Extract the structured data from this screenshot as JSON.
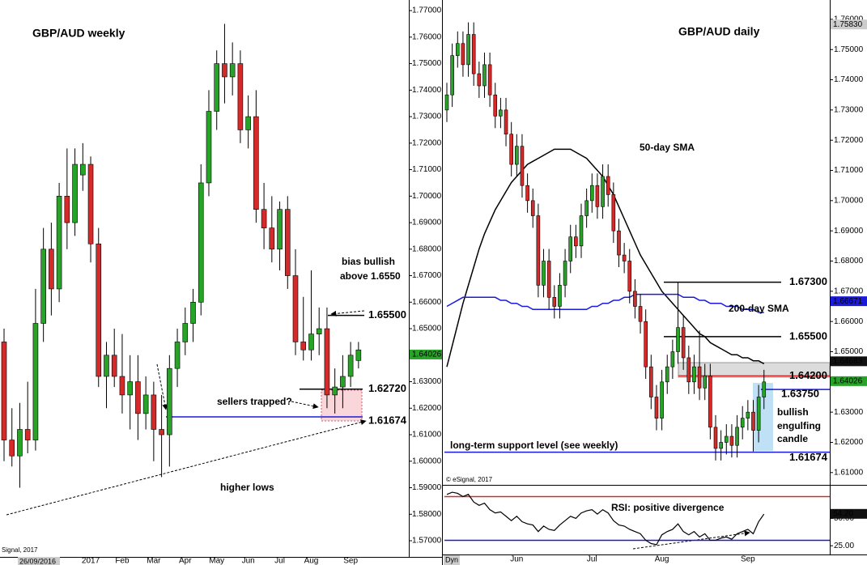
{
  "chart_data": [
    {
      "type": "candlestick",
      "title": "GBP/AUD weekly",
      "categories": [
        null,
        null,
        null,
        null,
        null,
        null,
        null,
        null,
        null,
        null,
        null,
        "2017",
        null,
        null,
        null,
        "Feb",
        null,
        null,
        null,
        "Mar",
        null,
        null,
        null,
        "Apr",
        null,
        null,
        null,
        "May",
        null,
        null,
        null,
        "Jun",
        null,
        null,
        null,
        "Jul",
        null,
        null,
        null,
        "Aug",
        null,
        null,
        null,
        null,
        "Sep",
        null
      ],
      "ohlc": [
        [
          1.645,
          1.65,
          1.6,
          1.608
        ],
        [
          1.608,
          1.62,
          1.598,
          1.602
        ],
        [
          1.602,
          1.622,
          1.59,
          1.612
        ],
        [
          1.612,
          1.63,
          1.603,
          1.608
        ],
        [
          1.608,
          1.665,
          1.604,
          1.652
        ],
        [
          1.652,
          1.688,
          1.645,
          1.68
        ],
        [
          1.68,
          1.69,
          1.655,
          1.665
        ],
        [
          1.665,
          1.705,
          1.66,
          1.7
        ],
        [
          1.7,
          1.718,
          1.68,
          1.69
        ],
        [
          1.69,
          1.718,
          1.685,
          1.712
        ],
        [
          1.708,
          1.72,
          1.702,
          1.712
        ],
        [
          1.712,
          1.715,
          1.675,
          1.682
        ],
        [
          1.682,
          1.688,
          1.628,
          1.632
        ],
        [
          1.632,
          1.645,
          1.62,
          1.64
        ],
        [
          1.64,
          1.65,
          1.628,
          1.632
        ],
        [
          1.632,
          1.648,
          1.618,
          1.625
        ],
        [
          1.625,
          1.64,
          1.612,
          1.63
        ],
        [
          1.63,
          1.64,
          1.608,
          1.618
        ],
        [
          1.618,
          1.632,
          1.612,
          1.625
        ],
        [
          1.625,
          1.63,
          1.6,
          1.612
        ],
        [
          1.612,
          1.625,
          1.594,
          1.61
        ],
        [
          1.61,
          1.64,
          1.598,
          1.635
        ],
        [
          1.635,
          1.65,
          1.628,
          1.645
        ],
        [
          1.645,
          1.658,
          1.64,
          1.652
        ],
        [
          1.652,
          1.665,
          1.645,
          1.66
        ],
        [
          1.66,
          1.712,
          1.655,
          1.705
        ],
        [
          1.705,
          1.74,
          1.7,
          1.732
        ],
        [
          1.732,
          1.755,
          1.725,
          1.75
        ],
        [
          1.75,
          1.765,
          1.735,
          1.745
        ],
        [
          1.745,
          1.758,
          1.738,
          1.75
        ],
        [
          1.75,
          1.755,
          1.72,
          1.725
        ],
        [
          1.725,
          1.738,
          1.718,
          1.73
        ],
        [
          1.73,
          1.74,
          1.69,
          1.695
        ],
        [
          1.695,
          1.705,
          1.68,
          1.688
        ],
        [
          1.688,
          1.7,
          1.675,
          1.68
        ],
        [
          1.68,
          1.698,
          1.672,
          1.695
        ],
        [
          1.695,
          1.7,
          1.665,
          1.67
        ],
        [
          1.67,
          1.68,
          1.64,
          1.645
        ],
        [
          1.645,
          1.662,
          1.638,
          1.642
        ],
        [
          1.642,
          1.672,
          1.638,
          1.648
        ],
        [
          1.648,
          1.658,
          1.64,
          1.65
        ],
        [
          1.65,
          1.658,
          1.62,
          1.625
        ],
        [
          1.625,
          1.635,
          1.618,
          1.628
        ],
        [
          1.628,
          1.64,
          1.62,
          1.632
        ],
        [
          1.632,
          1.645,
          1.628,
          1.64
        ],
        [
          1.638,
          1.645,
          1.635,
          1.642
        ]
      ],
      "up_color": "#27a327",
      "down_color": "#d42a2a",
      "ylim": [
        1.5639,
        1.774
      ],
      "yticks": [
        {
          "value": 1.77,
          "label": "1.77000"
        },
        {
          "value": 1.76,
          "label": "1.76000"
        },
        {
          "value": 1.75,
          "label": "1.75000"
        },
        {
          "value": 1.74,
          "label": "1.74000"
        },
        {
          "value": 1.73,
          "label": "1.73000"
        },
        {
          "value": 1.72,
          "label": "1.72000"
        },
        {
          "value": 1.71,
          "label": "1.71000"
        },
        {
          "value": 1.7,
          "label": "1.70000"
        },
        {
          "value": 1.69,
          "label": "1.69000"
        },
        {
          "value": 1.68,
          "label": "1.68000"
        },
        {
          "value": 1.67,
          "label": "1.67000"
        },
        {
          "value": 1.66,
          "label": "1.66000"
        },
        {
          "value": 1.65,
          "label": "1.65000"
        },
        {
          "value": 1.64,
          "label": "1.64000"
        },
        {
          "value": 1.63,
          "label": "1.63000"
        },
        {
          "value": 1.62,
          "label": "1.62000"
        },
        {
          "value": 1.61,
          "label": "1.61000"
        },
        {
          "value": 1.6,
          "label": "1.60000"
        },
        {
          "value": 1.59,
          "label": "1.59000"
        },
        {
          "value": 1.58,
          "label": "1.58000"
        },
        {
          "value": 1.57,
          "label": "1.57000"
        }
      ],
      "tags": [
        {
          "value": 1.64026,
          "label": "1.64026",
          "color": "#27a327"
        }
      ],
      "levels": [
        {
          "value": 1.655,
          "label": "1.65500",
          "color": "#000000"
        },
        {
          "value": 1.6272,
          "label": "1.62720",
          "color": "#000000"
        },
        {
          "value": 1.61674,
          "label": "1.61674",
          "color": "#1a1adb"
        }
      ],
      "annotations": [
        "bias bullish",
        "above 1.6550",
        "sellers trapped?",
        "higher lows"
      ],
      "date_label": "26/09/2016",
      "footer": "Signal, 2017"
    },
    {
      "type": "candlestick",
      "title": "GBP/AUD daily",
      "categories": [
        null,
        null,
        null,
        null,
        null,
        null,
        null,
        null,
        null,
        null,
        null,
        null,
        null,
        "Jun",
        null,
        null,
        null,
        null,
        null,
        null,
        null,
        null,
        null,
        null,
        null,
        null,
        null,
        "Jul",
        null,
        null,
        null,
        null,
        null,
        null,
        null,
        null,
        null,
        null,
        null,
        null,
        "Aug",
        null,
        null,
        null,
        null,
        null,
        null,
        null,
        null,
        null,
        null,
        null,
        null,
        null,
        null,
        null,
        "Sep",
        null,
        null,
        null
      ],
      "ohlc": [
        [
          1.73,
          1.739,
          1.726,
          1.735
        ],
        [
          1.735,
          1.752,
          1.731,
          1.748
        ],
        [
          1.748,
          1.756,
          1.744,
          1.752
        ],
        [
          1.752,
          1.756,
          1.741,
          1.745
        ],
        [
          1.745,
          1.759,
          1.741,
          1.755
        ],
        [
          1.755,
          1.759,
          1.738,
          1.742
        ],
        [
          1.742,
          1.746,
          1.734,
          1.738
        ],
        [
          1.738,
          1.749,
          1.734,
          1.745
        ],
        [
          1.745,
          1.749,
          1.731,
          1.735
        ],
        [
          1.735,
          1.739,
          1.724,
          1.728
        ],
        [
          1.728,
          1.734,
          1.724,
          1.73
        ],
        [
          1.73,
          1.734,
          1.718,
          1.722
        ],
        [
          1.722,
          1.726,
          1.708,
          1.712
        ],
        [
          1.712,
          1.722,
          1.708,
          1.718
        ],
        [
          1.718,
          1.722,
          1.701,
          1.705
        ],
        [
          1.705,
          1.709,
          1.696,
          1.7
        ],
        [
          1.7,
          1.704,
          1.691,
          1.695
        ],
        [
          1.695,
          1.699,
          1.668,
          1.672
        ],
        [
          1.672,
          1.684,
          1.668,
          1.68
        ],
        [
          1.68,
          1.684,
          1.664,
          1.668
        ],
        [
          1.668,
          1.672,
          1.661,
          1.665
        ],
        [
          1.665,
          1.676,
          1.661,
          1.672
        ],
        [
          1.672,
          1.684,
          1.668,
          1.68
        ],
        [
          1.68,
          1.692,
          1.676,
          1.688
        ],
        [
          1.688,
          1.692,
          1.681,
          1.685
        ],
        [
          1.685,
          1.699,
          1.681,
          1.695
        ],
        [
          1.695,
          1.704,
          1.691,
          1.7
        ],
        [
          1.7,
          1.709,
          1.696,
          1.705
        ],
        [
          1.705,
          1.709,
          1.694,
          1.698
        ],
        [
          1.698,
          1.712,
          1.694,
          1.708
        ],
        [
          1.708,
          1.712,
          1.698,
          1.702
        ],
        [
          1.702,
          1.706,
          1.686,
          1.69
        ],
        [
          1.69,
          1.694,
          1.678,
          1.682
        ],
        [
          1.682,
          1.686,
          1.676,
          1.68
        ],
        [
          1.68,
          1.684,
          1.666,
          1.67
        ],
        [
          1.67,
          1.674,
          1.661,
          1.665
        ],
        [
          1.665,
          1.669,
          1.656,
          1.66
        ],
        [
          1.66,
          1.664,
          1.641,
          1.645
        ],
        [
          1.645,
          1.649,
          1.631,
          1.635
        ],
        [
          1.635,
          1.639,
          1.624,
          1.628
        ],
        [
          1.628,
          1.644,
          1.624,
          1.64
        ],
        [
          1.64,
          1.649,
          1.636,
          1.645
        ],
        [
          1.645,
          1.654,
          1.641,
          1.65
        ],
        [
          1.65,
          1.673,
          1.646,
          1.658
        ],
        [
          1.658,
          1.662,
          1.644,
          1.648
        ],
        [
          1.648,
          1.652,
          1.636,
          1.64
        ],
        [
          1.64,
          1.649,
          1.636,
          1.645
        ],
        [
          1.645,
          1.657,
          1.634,
          1.638
        ],
        [
          1.638,
          1.646,
          1.634,
          1.642
        ],
        [
          1.642,
          1.646,
          1.621,
          1.625
        ],
        [
          1.625,
          1.629,
          1.614,
          1.618
        ],
        [
          1.618,
          1.624,
          1.614,
          1.62
        ],
        [
          1.62,
          1.626,
          1.616,
          1.622
        ],
        [
          1.622,
          1.626,
          1.615,
          1.619
        ],
        [
          1.619,
          1.629,
          1.615,
          1.625
        ],
        [
          1.625,
          1.632,
          1.621,
          1.628
        ],
        [
          1.628,
          1.634,
          1.624,
          1.63
        ],
        [
          1.63,
          1.634,
          1.617,
          1.624
        ],
        [
          1.624,
          1.639,
          1.62,
          1.635
        ],
        [
          1.635,
          1.644,
          1.631,
          1.64
        ]
      ],
      "up_color": "#27a327",
      "down_color": "#d42a2a",
      "series": [
        {
          "name": "50-day SMA",
          "color": "#000000",
          "values": [
            1.645,
            1.652,
            1.659,
            1.666,
            1.672,
            1.678,
            1.684,
            1.689,
            1.693,
            1.697,
            1.7,
            1.703,
            1.706,
            1.708,
            1.71,
            1.712,
            1.713,
            1.714,
            1.715,
            1.716,
            1.717,
            1.717,
            1.717,
            1.717,
            1.716,
            1.715,
            1.714,
            1.712,
            1.71,
            1.708,
            1.705,
            1.702,
            1.698,
            1.694,
            1.69,
            1.686,
            1.682,
            1.679,
            1.676,
            1.673,
            1.67,
            1.668,
            1.666,
            1.664,
            1.662,
            1.66,
            1.658,
            1.656,
            1.655,
            1.653,
            1.652,
            1.651,
            1.65,
            1.649,
            1.649,
            1.648,
            1.648,
            1.647,
            1.647,
            1.646
          ]
        },
        {
          "name": "200-day SMA",
          "color": "#1a1adb",
          "values": [
            1.665,
            1.666,
            1.667,
            1.668,
            1.668,
            1.668,
            1.668,
            1.668,
            1.668,
            1.668,
            1.667,
            1.667,
            1.666,
            1.666,
            1.665,
            1.665,
            1.664,
            1.664,
            1.664,
            1.664,
            1.664,
            1.664,
            1.664,
            1.664,
            1.664,
            1.664,
            1.664,
            1.665,
            1.665,
            1.666,
            1.666,
            1.667,
            1.667,
            1.668,
            1.668,
            1.669,
            1.669,
            1.669,
            1.669,
            1.669,
            1.669,
            1.669,
            1.669,
            1.669,
            1.668,
            1.668,
            1.668,
            1.667,
            1.667,
            1.666,
            1.666,
            1.666,
            1.665,
            1.665,
            1.665,
            1.664,
            1.664,
            1.664,
            1.663,
            1.663
          ]
        }
      ],
      "ylim": [
        1.6062,
        1.7664
      ],
      "yticks": [
        {
          "value": 1.76,
          "label": "1.76000"
        },
        {
          "value": 1.75,
          "label": "1.75000"
        },
        {
          "value": 1.74,
          "label": "1.74000"
        },
        {
          "value": 1.73,
          "label": "1.73000"
        },
        {
          "value": 1.72,
          "label": "1.72000"
        },
        {
          "value": 1.71,
          "label": "1.71000"
        },
        {
          "value": 1.7,
          "label": "1.70000"
        },
        {
          "value": 1.69,
          "label": "1.69000"
        },
        {
          "value": 1.68,
          "label": "1.68000"
        },
        {
          "value": 1.67,
          "label": "1.67000"
        },
        {
          "value": 1.66,
          "label": "1.66000"
        },
        {
          "value": 1.65,
          "label": "1.65000"
        },
        {
          "value": 1.64,
          "label": "1.64000"
        },
        {
          "value": 1.63,
          "label": "1.63000"
        },
        {
          "value": 1.62,
          "label": "1.62000"
        },
        {
          "value": 1.61,
          "label": "1.61000"
        }
      ],
      "tags": [
        {
          "value": 1.7583,
          "label": "1.75830",
          "color": "#cccccc"
        },
        {
          "value": 1.66671,
          "label": "1.66671",
          "color": "#1a1adb"
        },
        {
          "value": 1.64683,
          "label": "1.64683",
          "color": "#111111"
        },
        {
          "value": 1.64026,
          "label": "1.64026",
          "color": "#27a327"
        }
      ],
      "levels": [
        {
          "value": 1.673,
          "label": "1.67300",
          "color": "#000000"
        },
        {
          "value": 1.655,
          "label": "1.65500",
          "color": "#000000"
        },
        {
          "value": 1.642,
          "label": "1.64200",
          "color": "#d42a2a"
        },
        {
          "value": 1.6375,
          "label": "1.63750",
          "color": "#1a1adb"
        },
        {
          "value": 1.61674,
          "label": "1.61674",
          "color": "#1a1adb"
        }
      ],
      "annotations": [
        "bullish",
        "engulfing",
        "candle",
        "long-term support level (see weekly)"
      ],
      "footer": "© eSignal, 2017",
      "corner": "Dyn"
    },
    {
      "type": "line",
      "title": "RSI: positive divergence",
      "values": [
        72,
        74,
        73,
        70,
        72,
        65,
        62,
        64,
        58,
        55,
        56,
        52,
        48,
        52,
        47,
        45,
        44,
        38,
        43,
        40,
        39,
        44,
        48,
        52,
        50,
        55,
        57,
        58,
        54,
        58,
        55,
        48,
        44,
        43,
        40,
        38,
        36,
        30,
        27,
        26,
        35,
        38,
        40,
        45,
        38,
        35,
        38,
        33,
        36,
        30,
        30,
        32,
        33,
        31,
        36,
        38,
        40,
        36,
        47,
        54
      ],
      "color": "#000000",
      "ylim": [
        17,
        80
      ],
      "yticks": [
        {
          "value": 50,
          "label": "50.00"
        },
        {
          "value": 25,
          "label": "25.00"
        }
      ],
      "levels": [
        {
          "value": 70,
          "color": "#d42a2a"
        },
        {
          "value": 30,
          "color": "#1a1adb"
        }
      ],
      "tags": [
        {
          "value": 54.2,
          "label": "54.20",
          "color": "#111111"
        }
      ]
    }
  ]
}
